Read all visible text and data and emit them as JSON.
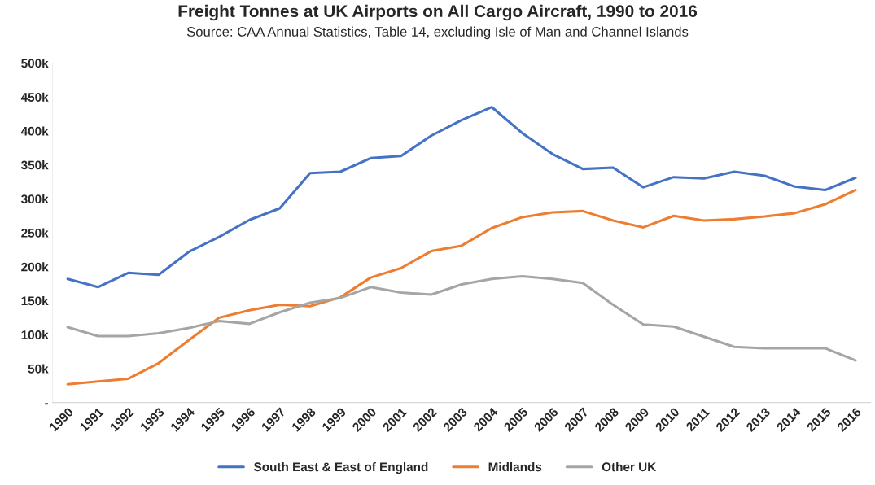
{
  "chart_data": {
    "type": "line",
    "title": "Freight Tonnes at UK Airports on All Cargo Aircraft, 1990 to 2016",
    "subtitle": "Source: CAA Annual Statistics, Table 14, excluding Isle of Man and Channel Islands",
    "categories": [
      "1990",
      "1991",
      "1992",
      "1993",
      "1994",
      "1995",
      "1996",
      "1997",
      "1998",
      "1999",
      "2000",
      "2001",
      "2002",
      "2003",
      "2004",
      "2005",
      "2006",
      "2007",
      "2008",
      "2009",
      "2010",
      "2011",
      "2012",
      "2013",
      "2014",
      "2015",
      "2016"
    ],
    "series": [
      {
        "name": "South East & East of England",
        "color": "#4472c4",
        "values": [
          182000,
          170000,
          191000,
          188000,
          222000,
          244000,
          269000,
          286000,
          338000,
          340000,
          360000,
          363000,
          393000,
          416000,
          435000,
          397000,
          366000,
          344000,
          346000,
          317000,
          332000,
          330000,
          340000,
          334000,
          318000,
          313000,
          331000
        ]
      },
      {
        "name": "Midlands",
        "color": "#ed7d31",
        "values": [
          27000,
          31000,
          35000,
          58000,
          92000,
          125000,
          136000,
          144000,
          142000,
          155000,
          184000,
          198000,
          223000,
          231000,
          257000,
          273000,
          280000,
          282000,
          268000,
          258000,
          275000,
          268000,
          270000,
          274000,
          279000,
          292000,
          313000
        ]
      },
      {
        "name": "Other UK",
        "color": "#a5a5a5",
        "values": [
          111000,
          98000,
          98000,
          102000,
          110000,
          120000,
          116000,
          133000,
          147000,
          154000,
          170000,
          162000,
          159000,
          174000,
          182000,
          186000,
          182000,
          176000,
          144000,
          115000,
          112000,
          97000,
          82000,
          80000,
          80000,
          80000,
          62000
        ]
      }
    ],
    "ylim": [
      0,
      500000
    ],
    "yticks": [
      {
        "value": 0,
        "label": "-"
      },
      {
        "value": 50000,
        "label": "50k"
      },
      {
        "value": 100000,
        "label": "100k"
      },
      {
        "value": 150000,
        "label": "150k"
      },
      {
        "value": 200000,
        "label": "200k"
      },
      {
        "value": 250000,
        "label": "250k"
      },
      {
        "value": 300000,
        "label": "300k"
      },
      {
        "value": 350000,
        "label": "350k"
      },
      {
        "value": 400000,
        "label": "400k"
      },
      {
        "value": 450000,
        "label": "450k"
      },
      {
        "value": 500000,
        "label": "500k"
      }
    ],
    "grid": false,
    "legend": "bottom",
    "marker": "none",
    "line_style": "solid"
  }
}
